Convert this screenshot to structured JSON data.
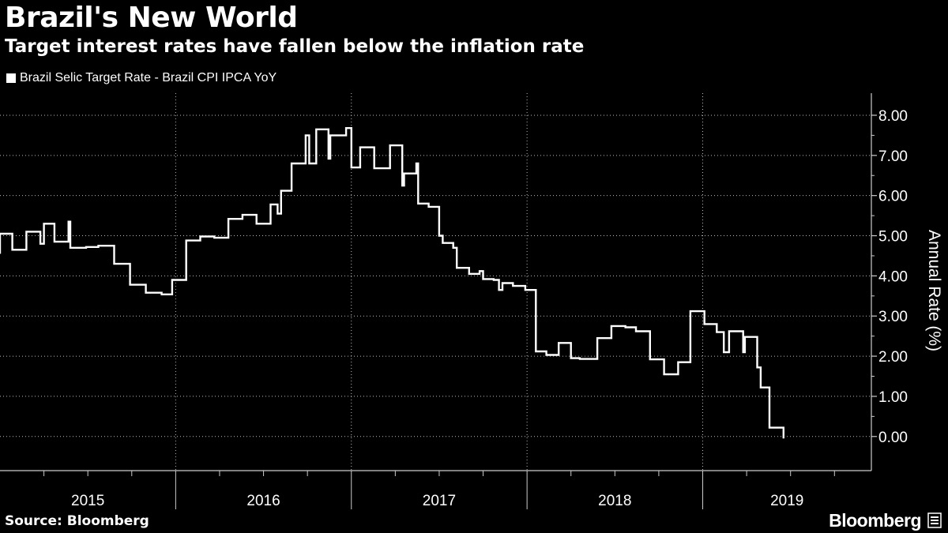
{
  "chart_data": {
    "type": "line",
    "title": "Brazil's New World",
    "subtitle": "Target interest rates have fallen below the inflation rate",
    "legend": [
      "Brazil Selic Target Rate - Brazil CPI IPCA YoY"
    ],
    "ylabel": "Annual Rate (%)",
    "xlabel": "",
    "ylim": [
      -0.85,
      8.55
    ],
    "xlim": [
      2015.0,
      2019.96
    ],
    "y_ticks": [
      0,
      1,
      2,
      3,
      4,
      5,
      6,
      7,
      8
    ],
    "y_tick_labels": [
      "0.00",
      "1.00",
      "2.00",
      "3.00",
      "4.00",
      "5.00",
      "6.00",
      "7.00",
      "8.00"
    ],
    "x_year_labels": [
      "2015",
      "2016",
      "2017",
      "2018",
      "2019"
    ],
    "source": "Source: Bloomberg",
    "brand": "Bloomberg",
    "series": [
      {
        "name": "Brazil Selic Target Rate - Brazil CPI IPCA YoY",
        "color": "#ffffff",
        "points": [
          [
            2015.0,
            4.55
          ],
          [
            2015.0,
            5.05
          ],
          [
            2015.07,
            5.05
          ],
          [
            2015.07,
            4.65
          ],
          [
            2015.15,
            4.65
          ],
          [
            2015.15,
            5.1
          ],
          [
            2015.23,
            5.1
          ],
          [
            2015.23,
            4.8
          ],
          [
            2015.25,
            4.8
          ],
          [
            2015.25,
            5.3
          ],
          [
            2015.31,
            5.3
          ],
          [
            2015.31,
            4.85
          ],
          [
            2015.39,
            4.85
          ],
          [
            2015.39,
            5.35
          ],
          [
            2015.4,
            5.35
          ],
          [
            2015.4,
            4.7
          ],
          [
            2015.49,
            4.7
          ],
          [
            2015.49,
            4.72
          ],
          [
            2015.56,
            4.72
          ],
          [
            2015.56,
            4.75
          ],
          [
            2015.65,
            4.75
          ],
          [
            2015.65,
            4.3
          ],
          [
            2015.74,
            4.3
          ],
          [
            2015.74,
            3.78
          ],
          [
            2015.83,
            3.78
          ],
          [
            2015.83,
            3.58
          ],
          [
            2015.92,
            3.58
          ],
          [
            2015.92,
            3.54
          ],
          [
            2015.98,
            3.54
          ],
          [
            2015.98,
            3.9
          ],
          [
            2016.06,
            3.9
          ],
          [
            2016.06,
            4.88
          ],
          [
            2016.14,
            4.88
          ],
          [
            2016.14,
            4.98
          ],
          [
            2016.22,
            4.98
          ],
          [
            2016.22,
            4.95
          ],
          [
            2016.3,
            4.95
          ],
          [
            2016.3,
            5.42
          ],
          [
            2016.38,
            5.42
          ],
          [
            2016.38,
            5.52
          ],
          [
            2016.46,
            5.52
          ],
          [
            2016.46,
            5.3
          ],
          [
            2016.54,
            5.3
          ],
          [
            2016.54,
            5.78
          ],
          [
            2016.58,
            5.78
          ],
          [
            2016.58,
            5.55
          ],
          [
            2016.6,
            5.55
          ],
          [
            2016.6,
            6.12
          ],
          [
            2016.66,
            6.12
          ],
          [
            2016.66,
            6.8
          ],
          [
            2016.74,
            6.8
          ],
          [
            2016.74,
            7.5
          ],
          [
            2016.76,
            7.5
          ],
          [
            2016.76,
            6.8
          ],
          [
            2016.8,
            6.8
          ],
          [
            2016.8,
            7.65
          ],
          [
            2016.87,
            7.65
          ],
          [
            2016.87,
            6.92
          ],
          [
            2016.88,
            6.92
          ],
          [
            2016.88,
            7.5
          ],
          [
            2016.97,
            7.5
          ],
          [
            2016.97,
            7.68
          ],
          [
            2017.0,
            7.68
          ],
          [
            2017.0,
            6.7
          ],
          [
            2017.05,
            6.7
          ],
          [
            2017.05,
            7.2
          ],
          [
            2017.13,
            7.2
          ],
          [
            2017.13,
            6.68
          ],
          [
            2017.22,
            6.68
          ],
          [
            2017.22,
            7.25
          ],
          [
            2017.29,
            7.25
          ],
          [
            2017.29,
            6.25
          ],
          [
            2017.3,
            6.25
          ],
          [
            2017.3,
            6.55
          ],
          [
            2017.37,
            6.55
          ],
          [
            2017.37,
            6.8
          ],
          [
            2017.38,
            6.8
          ],
          [
            2017.38,
            5.8
          ],
          [
            2017.44,
            5.8
          ],
          [
            2017.44,
            5.72
          ],
          [
            2017.5,
            5.72
          ],
          [
            2017.5,
            5.0
          ],
          [
            2017.52,
            5.0
          ],
          [
            2017.52,
            4.82
          ],
          [
            2017.58,
            4.82
          ],
          [
            2017.58,
            4.7
          ],
          [
            2017.6,
            4.7
          ],
          [
            2017.6,
            4.2
          ],
          [
            2017.67,
            4.2
          ],
          [
            2017.67,
            4.05
          ],
          [
            2017.73,
            4.05
          ],
          [
            2017.73,
            4.12
          ],
          [
            2017.75,
            4.12
          ],
          [
            2017.75,
            3.92
          ],
          [
            2017.81,
            3.92
          ],
          [
            2017.81,
            3.9
          ],
          [
            2017.84,
            3.9
          ],
          [
            2017.84,
            3.65
          ],
          [
            2017.86,
            3.65
          ],
          [
            2017.86,
            3.82
          ],
          [
            2017.92,
            3.82
          ],
          [
            2017.92,
            3.75
          ],
          [
            2017.99,
            3.75
          ],
          [
            2017.99,
            3.65
          ],
          [
            2018.05,
            3.65
          ],
          [
            2018.05,
            2.12
          ],
          [
            2018.11,
            2.12
          ],
          [
            2018.11,
            2.03
          ],
          [
            2018.18,
            2.03
          ],
          [
            2018.18,
            2.33
          ],
          [
            2018.25,
            2.33
          ],
          [
            2018.25,
            1.95
          ],
          [
            2018.3,
            1.95
          ],
          [
            2018.3,
            1.93
          ],
          [
            2018.4,
            1.93
          ],
          [
            2018.4,
            2.45
          ],
          [
            2018.48,
            2.45
          ],
          [
            2018.48,
            2.75
          ],
          [
            2018.56,
            2.75
          ],
          [
            2018.56,
            2.72
          ],
          [
            2018.62,
            2.72
          ],
          [
            2018.62,
            2.62
          ],
          [
            2018.7,
            2.62
          ],
          [
            2018.7,
            1.92
          ],
          [
            2018.78,
            1.92
          ],
          [
            2018.78,
            1.55
          ],
          [
            2018.86,
            1.55
          ],
          [
            2018.86,
            1.85
          ],
          [
            2018.93,
            1.85
          ],
          [
            2018.93,
            3.12
          ],
          [
            2019.01,
            3.12
          ],
          [
            2019.01,
            2.8
          ],
          [
            2019.08,
            2.8
          ],
          [
            2019.08,
            2.6
          ],
          [
            2019.12,
            2.6
          ],
          [
            2019.12,
            2.1
          ],
          [
            2019.15,
            2.1
          ],
          [
            2019.15,
            2.62
          ],
          [
            2019.23,
            2.62
          ],
          [
            2019.23,
            2.1
          ],
          [
            2019.24,
            2.1
          ],
          [
            2019.24,
            2.48
          ],
          [
            2019.31,
            2.48
          ],
          [
            2019.31,
            1.72
          ],
          [
            2019.33,
            1.72
          ],
          [
            2019.33,
            1.22
          ],
          [
            2019.38,
            1.22
          ],
          [
            2019.38,
            0.22
          ],
          [
            2019.46,
            0.22
          ],
          [
            2019.46,
            -0.05
          ]
        ]
      }
    ]
  }
}
